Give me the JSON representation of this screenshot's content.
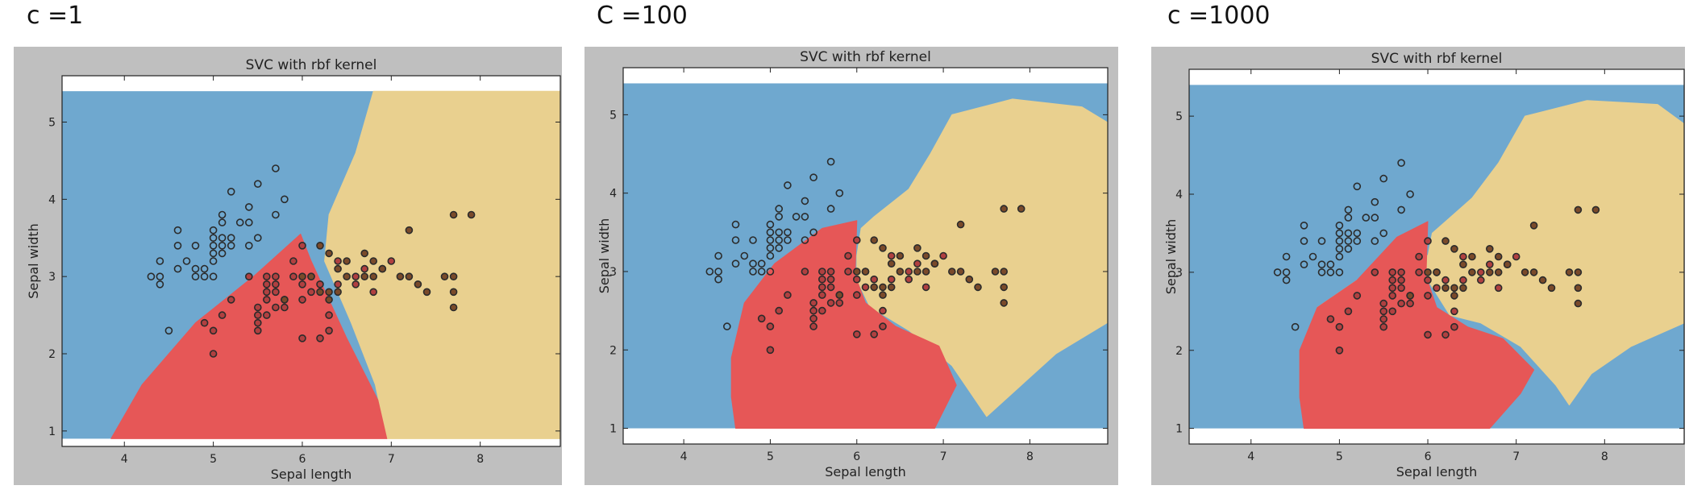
{
  "headings": [
    "c =1",
    "C =100",
    "c =1000"
  ],
  "colors": {
    "class_0": "#6fa8cf",
    "class_1": "#e65757",
    "class_2": "#e9d08f",
    "figure_bg": "#bfbfbf",
    "axes_bg": "#ffffff"
  },
  "chart_data": [
    {
      "type": "scatter",
      "title": "SVC with rbf kernel",
      "xlabel": "Sepal length",
      "ylabel": "Sepal width",
      "xlim": [
        3.3,
        8.9
      ],
      "ylim": [
        0.8,
        5.6
      ],
      "xticks": [
        4,
        5,
        6,
        7,
        8
      ],
      "yticks": [
        1,
        2,
        3,
        4,
        5
      ],
      "grid": false,
      "background_regions": [
        "blue",
        "red",
        "tan"
      ],
      "series": [
        {
          "marker": "open",
          "points": [
            [
              4.3,
              3.0
            ],
            [
              4.4,
              2.9
            ],
            [
              4.4,
              3.0
            ],
            [
              4.4,
              3.2
            ],
            [
              4.5,
              2.3
            ],
            [
              4.6,
              3.1
            ],
            [
              4.6,
              3.4
            ],
            [
              4.6,
              3.6
            ],
            [
              4.7,
              3.2
            ],
            [
              4.8,
              3.0
            ],
            [
              4.8,
              3.1
            ],
            [
              4.8,
              3.4
            ],
            [
              4.9,
              3.0
            ],
            [
              4.9,
              3.1
            ],
            [
              5.0,
              3.0
            ],
            [
              5.0,
              3.2
            ],
            [
              5.0,
              3.3
            ],
            [
              5.0,
              3.4
            ],
            [
              5.0,
              3.5
            ],
            [
              5.0,
              3.6
            ],
            [
              5.1,
              3.3
            ],
            [
              5.1,
              3.4
            ],
            [
              5.1,
              3.5
            ],
            [
              5.1,
              3.7
            ],
            [
              5.1,
              3.8
            ],
            [
              5.2,
              3.4
            ],
            [
              5.2,
              3.5
            ],
            [
              5.2,
              4.1
            ],
            [
              5.3,
              3.7
            ],
            [
              5.4,
              3.4
            ],
            [
              5.4,
              3.7
            ],
            [
              5.4,
              3.9
            ],
            [
              5.5,
              3.5
            ],
            [
              5.5,
              4.2
            ],
            [
              5.7,
              3.8
            ],
            [
              5.7,
              4.4
            ],
            [
              5.8,
              4.0
            ]
          ]
        },
        {
          "marker": "filled",
          "points": [
            [
              4.9,
              2.4
            ],
            [
              5.0,
              2.0
            ],
            [
              5.0,
              2.3
            ],
            [
              5.1,
              2.5
            ],
            [
              5.2,
              2.7
            ],
            [
              5.4,
              3.0
            ],
            [
              5.5,
              2.3
            ],
            [
              5.5,
              2.4
            ],
            [
              5.5,
              2.5
            ],
            [
              5.5,
              2.6
            ],
            [
              5.6,
              2.5
            ],
            [
              5.6,
              2.7
            ],
            [
              5.6,
              2.8
            ],
            [
              5.6,
              2.9
            ],
            [
              5.6,
              3.0
            ],
            [
              5.7,
              2.6
            ],
            [
              5.7,
              2.8
            ],
            [
              5.7,
              2.9
            ],
            [
              5.7,
              3.0
            ],
            [
              5.8,
              2.6
            ],
            [
              5.8,
              2.7
            ],
            [
              5.9,
              3.0
            ],
            [
              5.9,
              3.2
            ],
            [
              6.0,
              2.2
            ],
            [
              6.0,
              2.7
            ],
            [
              6.0,
              2.9
            ],
            [
              6.0,
              3.4
            ],
            [
              6.1,
              2.8
            ],
            [
              6.1,
              3.0
            ],
            [
              6.2,
              2.2
            ],
            [
              6.2,
              2.9
            ],
            [
              6.3,
              2.3
            ],
            [
              6.3,
              2.5
            ],
            [
              6.4,
              2.9
            ],
            [
              6.4,
              3.2
            ],
            [
              6.6,
              2.9
            ],
            [
              6.6,
              3.0
            ],
            [
              6.7,
              3.1
            ],
            [
              6.8,
              2.8
            ],
            [
              6.9,
              3.1
            ],
            [
              7.0,
              3.2
            ]
          ]
        },
        {
          "marker": "filled",
          "points": [
            [
              5.8,
              2.7
            ],
            [
              6.0,
              3.0
            ],
            [
              6.1,
              3.0
            ],
            [
              6.2,
              2.8
            ],
            [
              6.2,
              3.4
            ],
            [
              6.3,
              2.7
            ],
            [
              6.3,
              2.8
            ],
            [
              6.3,
              3.3
            ],
            [
              6.4,
              2.8
            ],
            [
              6.4,
              3.1
            ],
            [
              6.5,
              3.0
            ],
            [
              6.5,
              3.2
            ],
            [
              6.7,
              3.0
            ],
            [
              6.7,
              3.3
            ],
            [
              6.8,
              3.0
            ],
            [
              6.8,
              3.2
            ],
            [
              6.9,
              3.1
            ],
            [
              7.1,
              3.0
            ],
            [
              7.2,
              3.0
            ],
            [
              7.2,
              3.6
            ],
            [
              7.3,
              2.9
            ],
            [
              7.4,
              2.8
            ],
            [
              7.6,
              3.0
            ],
            [
              7.7,
              2.6
            ],
            [
              7.7,
              2.8
            ],
            [
              7.7,
              3.0
            ],
            [
              7.7,
              3.8
            ],
            [
              7.9,
              3.8
            ]
          ]
        }
      ]
    },
    {
      "type": "scatter",
      "title": "SVC with rbf kernel",
      "xlabel": "Sepal length",
      "ylabel": "Sepal width",
      "xlim": [
        3.3,
        8.9
      ],
      "ylim": [
        0.8,
        5.6
      ],
      "xticks": [
        4,
        5,
        6,
        7,
        8
      ],
      "yticks": [
        1,
        2,
        3,
        4,
        5
      ],
      "grid": false,
      "background_regions": [
        "blue",
        "red",
        "tan"
      ]
    },
    {
      "type": "scatter",
      "title": "SVC with rbf kernel",
      "xlabel": "Sepal length",
      "ylabel": "Sepal width",
      "xlim": [
        3.3,
        8.9
      ],
      "ylim": [
        0.8,
        5.6
      ],
      "xticks": [
        4,
        5,
        6,
        7,
        8
      ],
      "yticks": [
        1,
        2,
        3,
        4,
        5
      ],
      "grid": false,
      "background_regions": [
        "blue",
        "red",
        "tan"
      ]
    }
  ]
}
